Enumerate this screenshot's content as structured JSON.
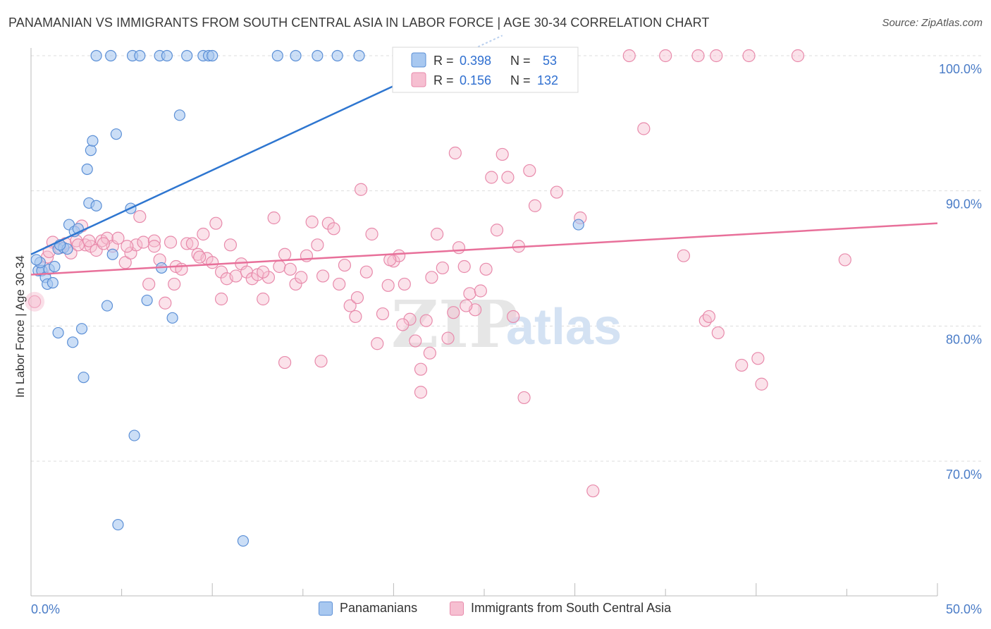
{
  "title": "PANAMANIAN VS IMMIGRANTS FROM SOUTH CENTRAL ASIA IN LABOR FORCE | AGE 30-34 CORRELATION CHART",
  "source": "Source: ZipAtlas.com",
  "watermark": {
    "zip": "ZIP",
    "atlas": "atlas"
  },
  "colors": {
    "blue_fill": "#a8c8f0",
    "blue_stroke": "#5b8fd6",
    "blue_line": "#2e76d0",
    "pink_fill": "#f6bfd1",
    "pink_stroke": "#e88aab",
    "pink_line": "#e8709a",
    "tick_text": "#4a7cc7",
    "grid": "#dddddd"
  },
  "legend": {
    "rows": [
      {
        "r_label": "R =",
        "r_value": "0.398",
        "n_label": "N =",
        "n_value": "53"
      },
      {
        "r_label": "R =",
        "r_value": "0.156",
        "n_label": "N =",
        "n_value": "132"
      }
    ]
  },
  "bottom_legend": {
    "series1": "Panamanians",
    "series2": "Immigrants from South Central Asia"
  },
  "chart_data": {
    "type": "scatter",
    "ylabel": "In Labor Force | Age 30-34",
    "xlim": [
      0,
      50
    ],
    "ylim": [
      62,
      101
    ],
    "x_tick_labels": [
      "0.0%",
      "50.0%"
    ],
    "y_ticks": [
      70,
      80,
      90,
      100
    ],
    "y_tick_labels": [
      "70.0%",
      "80.0%",
      "90.0%",
      "100.0%"
    ],
    "grid": true,
    "series": [
      {
        "name": "Panamanians",
        "trend": {
          "x": [
            0,
            23.6
          ],
          "y": [
            85.3,
            100
          ]
        },
        "points": [
          [
            0.4,
            84.1
          ],
          [
            0.6,
            84.1
          ],
          [
            0.5,
            84.7
          ],
          [
            0.8,
            83.6
          ],
          [
            0.9,
            83.1
          ],
          [
            1.2,
            83.2
          ],
          [
            1.0,
            84.2
          ],
          [
            1.3,
            84.4
          ],
          [
            1.5,
            85.7
          ],
          [
            1.8,
            85.8
          ],
          [
            2.0,
            85.7
          ],
          [
            2.1,
            87.5
          ],
          [
            2.4,
            87.0
          ],
          [
            2.6,
            87.2
          ],
          [
            1.5,
            79.5
          ],
          [
            2.8,
            79.8
          ],
          [
            2.3,
            78.8
          ],
          [
            2.9,
            76.2
          ],
          [
            3.1,
            91.6
          ],
          [
            3.3,
            93.0
          ],
          [
            3.4,
            93.7
          ],
          [
            3.2,
            89.1
          ],
          [
            3.6,
            88.9
          ],
          [
            4.2,
            81.5
          ],
          [
            4.5,
            85.3
          ],
          [
            4.7,
            94.2
          ],
          [
            5.5,
            88.7
          ],
          [
            6.4,
            81.9
          ],
          [
            7.2,
            84.3
          ],
          [
            7.8,
            80.6
          ],
          [
            8.2,
            95.6
          ],
          [
            5.7,
            71.9
          ],
          [
            4.8,
            65.3
          ],
          [
            11.7,
            64.1
          ],
          [
            3.6,
            100
          ],
          [
            4.4,
            100
          ],
          [
            5.6,
            100
          ],
          [
            6.0,
            100
          ],
          [
            7.1,
            100
          ],
          [
            7.5,
            100
          ],
          [
            8.6,
            100
          ],
          [
            9.5,
            100
          ],
          [
            9.8,
            100
          ],
          [
            10.0,
            100
          ],
          [
            13.6,
            100
          ],
          [
            14.6,
            100
          ],
          [
            15.8,
            100
          ],
          [
            16.9,
            100
          ],
          [
            18.1,
            100
          ],
          [
            23.5,
            100
          ],
          [
            30.2,
            87.5
          ],
          [
            0.3,
            84.9
          ],
          [
            1.6,
            86.0
          ]
        ]
      },
      {
        "name": "Immigrants from South Central Asia",
        "trend": {
          "x": [
            0,
            50
          ],
          "y": [
            83.8,
            87.6
          ]
        },
        "points": [
          [
            0.2,
            81.8
          ],
          [
            0.7,
            84.3
          ],
          [
            0.9,
            85.1
          ],
          [
            1.2,
            86.2
          ],
          [
            1.6,
            85.8
          ],
          [
            1.9,
            86.1
          ],
          [
            2.2,
            85.4
          ],
          [
            2.5,
            86.3
          ],
          [
            2.8,
            87.4
          ],
          [
            3.0,
            86.0
          ],
          [
            3.3,
            85.9
          ],
          [
            3.6,
            85.6
          ],
          [
            3.9,
            86.3
          ],
          [
            4.2,
            86.5
          ],
          [
            4.5,
            85.9
          ],
          [
            4.8,
            86.5
          ],
          [
            5.2,
            84.7
          ],
          [
            5.5,
            85.4
          ],
          [
            5.8,
            86.0
          ],
          [
            6.0,
            88.1
          ],
          [
            6.2,
            86.2
          ],
          [
            6.5,
            83.1
          ],
          [
            6.8,
            86.3
          ],
          [
            7.1,
            84.9
          ],
          [
            7.4,
            81.7
          ],
          [
            7.7,
            86.2
          ],
          [
            8.0,
            84.4
          ],
          [
            8.3,
            84.2
          ],
          [
            8.6,
            86.1
          ],
          [
            8.9,
            86.1
          ],
          [
            9.2,
            85.3
          ],
          [
            9.5,
            86.8
          ],
          [
            9.7,
            85.0
          ],
          [
            10.0,
            84.7
          ],
          [
            10.2,
            87.6
          ],
          [
            10.5,
            84.0
          ],
          [
            10.8,
            83.5
          ],
          [
            11.0,
            86.0
          ],
          [
            11.3,
            83.7
          ],
          [
            11.6,
            84.6
          ],
          [
            11.9,
            84.0
          ],
          [
            12.2,
            83.5
          ],
          [
            12.5,
            83.8
          ],
          [
            12.8,
            82.0
          ],
          [
            13.1,
            83.6
          ],
          [
            13.4,
            88.0
          ],
          [
            13.7,
            84.4
          ],
          [
            14.0,
            85.3
          ],
          [
            14.3,
            84.2
          ],
          [
            14.6,
            83.1
          ],
          [
            14.9,
            83.6
          ],
          [
            15.2,
            85.2
          ],
          [
            15.5,
            87.7
          ],
          [
            15.8,
            86.0
          ],
          [
            16.1,
            83.7
          ],
          [
            16.4,
            87.6
          ],
          [
            16.7,
            87.2
          ],
          [
            17.0,
            83.1
          ],
          [
            17.3,
            84.5
          ],
          [
            17.6,
            81.5
          ],
          [
            17.9,
            80.7
          ],
          [
            18.2,
            90.1
          ],
          [
            18.5,
            84.0
          ],
          [
            18.8,
            86.8
          ],
          [
            19.1,
            78.7
          ],
          [
            19.4,
            80.9
          ],
          [
            19.7,
            83.0
          ],
          [
            20.0,
            84.8
          ],
          [
            20.3,
            85.2
          ],
          [
            20.6,
            83.1
          ],
          [
            20.9,
            80.5
          ],
          [
            21.2,
            78.9
          ],
          [
            21.5,
            76.8
          ],
          [
            21.5,
            75.1
          ],
          [
            21.8,
            80.4
          ],
          [
            22.1,
            83.6
          ],
          [
            22.4,
            86.8
          ],
          [
            22.7,
            84.3
          ],
          [
            23.0,
            79.1
          ],
          [
            23.3,
            81.0
          ],
          [
            23.6,
            85.8
          ],
          [
            23.9,
            84.4
          ],
          [
            24.2,
            82.4
          ],
          [
            24.5,
            81.2
          ],
          [
            24.8,
            82.6
          ],
          [
            25.1,
            84.2
          ],
          [
            25.4,
            91.0
          ],
          [
            25.7,
            87.1
          ],
          [
            26.0,
            92.7
          ],
          [
            26.3,
            91.0
          ],
          [
            26.6,
            80.7
          ],
          [
            26.9,
            85.9
          ],
          [
            27.2,
            74.7
          ],
          [
            27.5,
            91.5
          ],
          [
            27.8,
            88.9
          ],
          [
            23.4,
            92.8
          ],
          [
            28.0,
            98.0
          ],
          [
            29.0,
            89.9
          ],
          [
            30.3,
            88.0
          ],
          [
            31.0,
            67.8
          ],
          [
            33.8,
            94.6
          ],
          [
            33.0,
            100
          ],
          [
            35.0,
            100
          ],
          [
            36.8,
            100
          ],
          [
            37.8,
            100
          ],
          [
            39.6,
            100
          ],
          [
            42.3,
            100
          ],
          [
            36.0,
            85.2
          ],
          [
            37.2,
            80.4
          ],
          [
            37.4,
            80.7
          ],
          [
            37.9,
            79.5
          ],
          [
            39.2,
            77.1
          ],
          [
            40.1,
            77.6
          ],
          [
            40.3,
            75.7
          ],
          [
            44.9,
            84.9
          ],
          [
            10.5,
            82.0
          ],
          [
            16.0,
            77.4
          ],
          [
            14.0,
            77.3
          ],
          [
            12.8,
            84.0
          ],
          [
            9.3,
            85.1
          ],
          [
            6.8,
            85.9
          ],
          [
            5.3,
            85.9
          ],
          [
            2.6,
            86.0
          ],
          [
            3.2,
            86.3
          ],
          [
            4.0,
            86.1
          ],
          [
            1.0,
            85.5
          ],
          [
            7.9,
            83.1
          ],
          [
            24.0,
            81.5
          ],
          [
            22.0,
            78.0
          ],
          [
            20.5,
            80.1
          ],
          [
            19.8,
            84.9
          ],
          [
            18.0,
            82.1
          ]
        ]
      }
    ]
  }
}
